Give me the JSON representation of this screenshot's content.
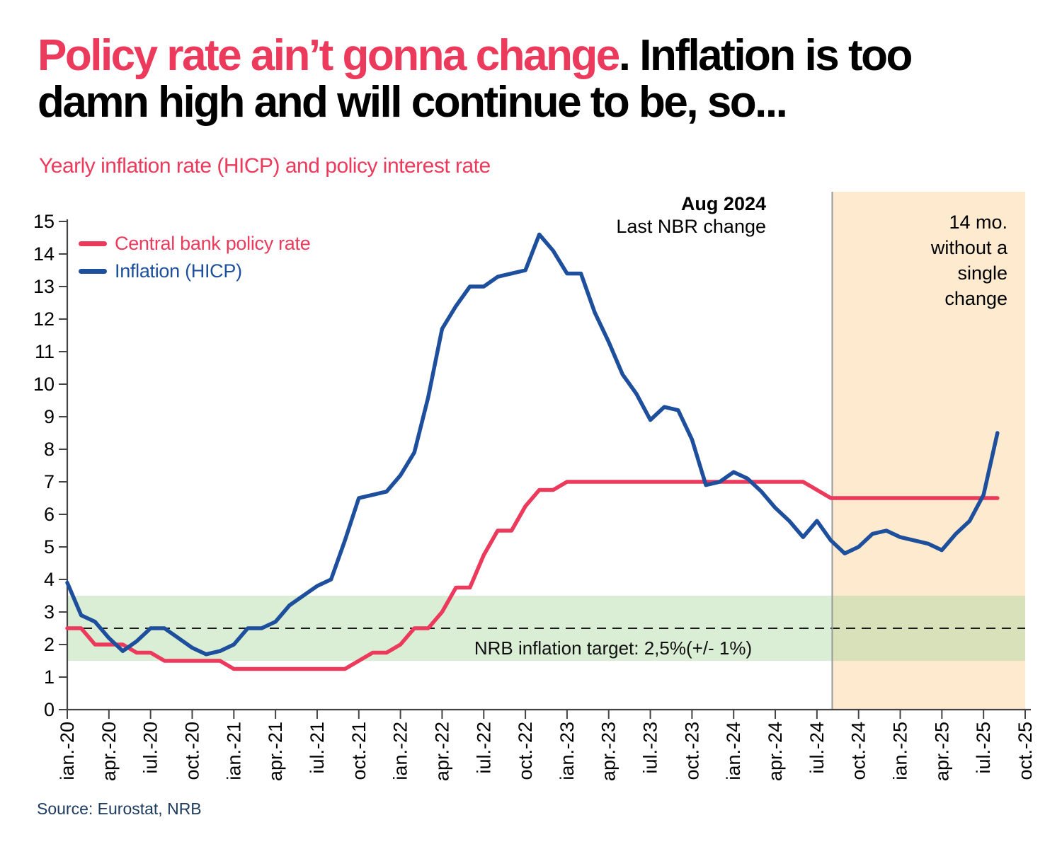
{
  "title": {
    "highlight": "Policy rate ain’t gonna change",
    "rest_line1": ". Inflation is too",
    "rest_line2": "damn high and will continue to be, so..."
  },
  "subtitle": "Yearly inflation rate (HICP) and policy interest rate",
  "source": "Source: Eurostat, NRB",
  "colors": {
    "accent": "#ec3a5c",
    "blue": "#1e4f9d",
    "navy": "#1c3a5e",
    "green_band": "rgba(172,214,162,0.45)",
    "orange_band": "#fdeacf",
    "axis": "#444444",
    "divider": "#999999",
    "dashed": "#1a1a1a"
  },
  "annotations": {
    "last_change_line1": "Aug 2024",
    "last_change_line2": "Last NBR change",
    "no_change_lines": [
      "14 mo.",
      "without a",
      "single",
      "change"
    ],
    "target_label": "NRB inflation target: 2,5%(+/- 1%)"
  },
  "chart_data": {
    "type": "line",
    "title": "Yearly inflation rate (HICP) and policy interest rate",
    "xlabel": "",
    "ylabel": "",
    "ylim": [
      0,
      15
    ],
    "y_tick_step": 1,
    "grid": false,
    "legend_position": "top-left",
    "x_tick_labels": [
      "ian.-20",
      "apr.-20",
      "iul.-20",
      "oct.-20",
      "ian.-21",
      "apr.-21",
      "iul.-21",
      "oct.-21",
      "ian.-22",
      "apr.-22",
      "iul.-22",
      "oct.-22",
      "ian.-23",
      "apr.-23",
      "iul.-23",
      "oct.-23",
      "ian.-24",
      "apr.-24",
      "iul.-24",
      "oct.-24",
      "ian.-25",
      "apr.-25",
      "iul.-25",
      "oct.-25"
    ],
    "months_per_tick": 3,
    "x_total_months": 69,
    "x_start": "Jan 2020",
    "x_end_data": "Aug 2025",
    "series": [
      {
        "key": "policy-rate",
        "name": "Central bank policy rate",
        "color": "#ec3a5c",
        "values": [
          2.5,
          2.5,
          2.0,
          2.0,
          2.0,
          1.75,
          1.75,
          1.5,
          1.5,
          1.5,
          1.5,
          1.5,
          1.25,
          1.25,
          1.25,
          1.25,
          1.25,
          1.25,
          1.25,
          1.25,
          1.25,
          1.5,
          1.75,
          1.75,
          2.0,
          2.5,
          2.5,
          3.0,
          3.75,
          3.75,
          4.75,
          5.5,
          5.5,
          6.25,
          6.75,
          6.75,
          7.0,
          7.0,
          7.0,
          7.0,
          7.0,
          7.0,
          7.0,
          7.0,
          7.0,
          7.0,
          7.0,
          7.0,
          7.0,
          7.0,
          7.0,
          7.0,
          7.0,
          7.0,
          6.75,
          6.5,
          6.5,
          6.5,
          6.5,
          6.5,
          6.5,
          6.5,
          6.5,
          6.5,
          6.5,
          6.5,
          6.5,
          6.5
        ]
      },
      {
        "key": "inflation-hicp",
        "name": "Inflation (HICP)",
        "color": "#1e4f9d",
        "values": [
          3.9,
          2.9,
          2.7,
          2.2,
          1.8,
          2.1,
          2.5,
          2.5,
          2.2,
          1.9,
          1.7,
          1.8,
          2.0,
          2.5,
          2.5,
          2.7,
          3.2,
          3.5,
          3.8,
          4.0,
          5.2,
          6.5,
          6.6,
          6.7,
          7.2,
          7.9,
          9.6,
          11.7,
          12.4,
          13.0,
          13.0,
          13.3,
          13.4,
          13.5,
          14.6,
          14.1,
          13.4,
          13.4,
          12.2,
          11.3,
          10.3,
          9.7,
          8.9,
          9.3,
          9.2,
          8.3,
          6.9,
          7.0,
          7.3,
          7.1,
          6.7,
          6.2,
          5.8,
          5.3,
          5.8,
          5.2,
          4.8,
          5.0,
          5.4,
          5.5,
          5.3,
          5.2,
          5.1,
          4.9,
          5.4,
          5.8,
          6.6,
          8.5
        ]
      }
    ],
    "target_line": {
      "value": 2.5,
      "style": "dashed",
      "label": "NRB inflation target: 2,5%(+/- 1%)"
    },
    "target_band": {
      "from": 1.5,
      "to": 3.5
    },
    "highlight_region": {
      "start_month_index": 55.1,
      "label": "14 mo. without a single change"
    },
    "divider_line": {
      "month_index": 55.1,
      "label": "Aug 2024 Last NBR change"
    }
  }
}
